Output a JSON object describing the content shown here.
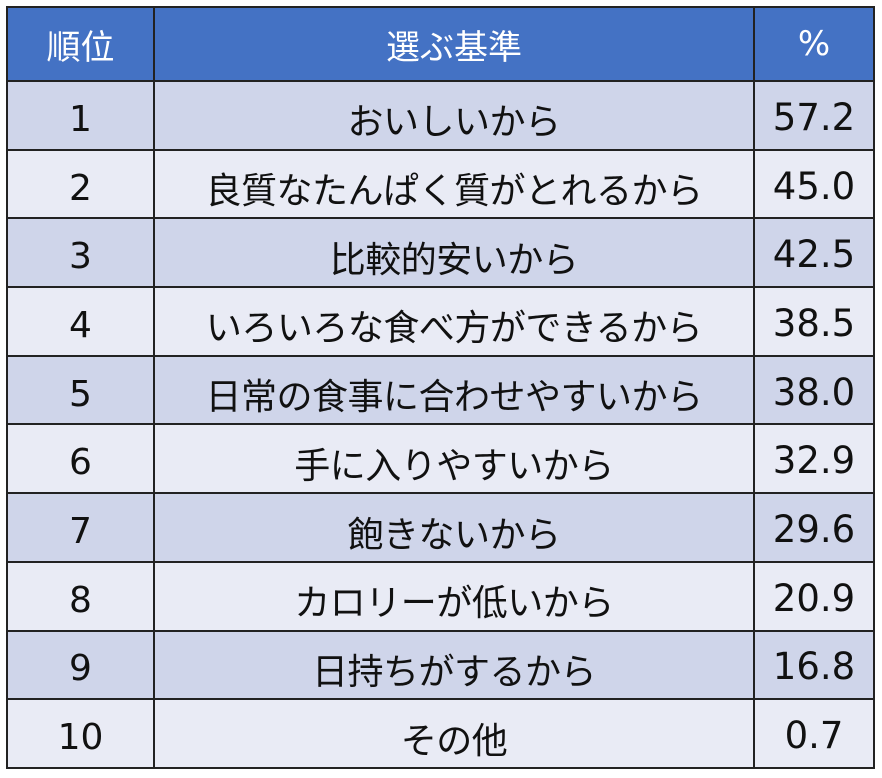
{
  "chart_data": {
    "type": "table",
    "columns": [
      "順位",
      "選ぶ基準",
      "%"
    ],
    "rows": [
      {
        "rank": "1",
        "criterion": "おいしいから",
        "percent": "57.2"
      },
      {
        "rank": "2",
        "criterion": "良質なたんぱく質がとれるから",
        "percent": "45.0"
      },
      {
        "rank": "3",
        "criterion": "比較的安いから",
        "percent": "42.5"
      },
      {
        "rank": "4",
        "criterion": "いろいろな食べ方ができるから",
        "percent": "38.5"
      },
      {
        "rank": "5",
        "criterion": "日常の食事に合わせやすいから",
        "percent": "38.0"
      },
      {
        "rank": "6",
        "criterion": "手に入りやすいから",
        "percent": "32.9"
      },
      {
        "rank": "7",
        "criterion": "飽きないから",
        "percent": "29.6"
      },
      {
        "rank": "8",
        "criterion": "カロリーが低いから",
        "percent": "20.9"
      },
      {
        "rank": "9",
        "criterion": "日持ちがするから",
        "percent": "16.8"
      },
      {
        "rank": "10",
        "criterion": "その他",
        "percent": "0.7"
      }
    ]
  },
  "colors": {
    "header_bg": "#4472c4",
    "header_text": "#ffffff",
    "row_dark": "#cfd5ea",
    "row_light": "#e9ebf5",
    "border": "#222222"
  }
}
